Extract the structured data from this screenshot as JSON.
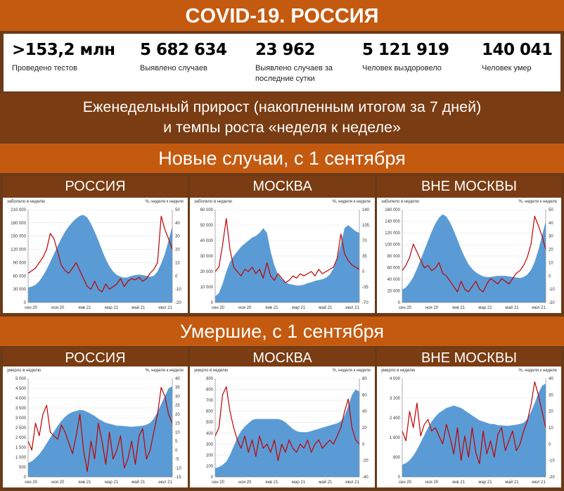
{
  "title": "COVID-19. РОССИЯ",
  "stats": [
    {
      "value": ">153,2 млн",
      "label": "Проведено тестов",
      "color": "#1f3d8a"
    },
    {
      "value": "5 682 634",
      "label": "Выявлено случаев",
      "color": "#e8563c"
    },
    {
      "value": "23 962",
      "label": "Выявлено случаев за последние сутки",
      "color": "#e8563c"
    },
    {
      "value": "5 121 919",
      "label": "Человек выздоровело",
      "color": "#1f3d8a"
    },
    {
      "value": "140 041",
      "label": "Человек умер",
      "color": "#1f3d8a"
    }
  ],
  "subtitle_line1": "Еженедельный прирост (накопленным итогом за 7 дней)",
  "subtitle_line2": "и темпы роста «неделя к неделе»",
  "section_cases": "Новые случаи, с 1 сентября",
  "section_deaths": "Умершие, с 1 сентября",
  "colors": {
    "area": "#5b9bd5",
    "line": "#c00000"
  },
  "chart_data": [
    {
      "type": "area+line",
      "section": "cases",
      "title": "РОССИЯ",
      "ylabel": "заболело в неделю",
      "y2label": "%, неделя к неделе",
      "ylim": [
        0,
        210000
      ],
      "yticks": [
        0,
        30000,
        60000,
        90000,
        120000,
        150000,
        180000,
        210000
      ],
      "ytick_labels": [
        "0",
        "30 000",
        "60 000",
        "90 000",
        "120 000",
        "150 000",
        "180 000",
        "210 000"
      ],
      "y2lim": [
        -20,
        50
      ],
      "y2ticks": [
        -20,
        -10,
        0,
        10,
        20,
        30,
        40,
        50
      ],
      "xticks": [
        "сен 20",
        "ноя 20",
        "янв 21",
        "мар 21",
        "май 21",
        "июл 21"
      ],
      "area": [
        34000,
        36000,
        40000,
        48000,
        60000,
        75000,
        92000,
        110000,
        128000,
        145000,
        160000,
        172000,
        182000,
        190000,
        196000,
        198000,
        192000,
        178000,
        160000,
        140000,
        118000,
        98000,
        82000,
        70000,
        62000,
        58000,
        56000,
        57000,
        60000,
        62000,
        63000,
        62000,
        60000,
        58000,
        60000,
        70000,
        88000,
        110000,
        140000,
        172000
      ],
      "line": [
        2,
        4,
        6,
        10,
        14,
        20,
        32,
        28,
        18,
        8,
        4,
        2,
        6,
        10,
        4,
        -2,
        -8,
        -10,
        -4,
        -10,
        -12,
        -6,
        -10,
        -8,
        -6,
        -2,
        -8,
        -4,
        -2,
        -3,
        -1,
        -4,
        -2,
        2,
        5,
        10,
        45,
        35,
        28,
        20
      ]
    },
    {
      "type": "area+line",
      "section": "cases",
      "title": "МОСКВА",
      "ylabel": "заболело в неделю",
      "y2label": "%, неделя к неделе",
      "ylim": [
        0,
        60000
      ],
      "yticks": [
        0,
        10000,
        20000,
        30000,
        40000,
        50000,
        60000
      ],
      "ytick_labels": [
        "0",
        "10 000",
        "20 000",
        "30 000",
        "40 000",
        "50 000",
        "60 000"
      ],
      "y2lim": [
        -70,
        140
      ],
      "y2ticks": [
        -70,
        -35,
        0,
        35,
        70,
        105,
        140
      ],
      "xticks": [
        "сен 20",
        "ноя 20",
        "янв 21",
        "мар 21",
        "май 21",
        "июл 21"
      ],
      "area": [
        4000,
        6000,
        12000,
        20000,
        26000,
        30000,
        33000,
        36000,
        38000,
        40000,
        42000,
        43000,
        45000,
        48000,
        45000,
        33000,
        24000,
        18000,
        15000,
        13000,
        12000,
        11500,
        11000,
        11000,
        11500,
        12500,
        13000,
        14000,
        14500,
        15000,
        16000,
        18000,
        22000,
        28000,
        38000,
        48000,
        50000,
        48000,
        46000,
        45000
      ],
      "line": [
        0,
        10,
        60,
        120,
        50,
        10,
        0,
        -10,
        5,
        0,
        10,
        -5,
        5,
        -15,
        20,
        -10,
        -20,
        -5,
        -15,
        -25,
        -20,
        -10,
        -15,
        -5,
        -10,
        -5,
        0,
        -10,
        5,
        -5,
        0,
        5,
        10,
        30,
        85,
        40,
        25,
        15,
        10,
        5
      ]
    },
    {
      "type": "area+line",
      "section": "cases",
      "title": "ВНЕ МОСКВЫ",
      "ylabel": "заболело в неделю",
      "y2label": "%, неделя к неделе",
      "ylim": [
        0,
        160000
      ],
      "yticks": [
        0,
        20000,
        40000,
        60000,
        80000,
        100000,
        120000,
        140000,
        160000
      ],
      "ytick_labels": [
        "0",
        "20 000",
        "40 000",
        "60 000",
        "80 000",
        "100 000",
        "120 000",
        "140 000",
        "160 000"
      ],
      "y2lim": [
        -20,
        50
      ],
      "y2ticks": [
        -20,
        -10,
        0,
        10,
        20,
        30,
        40,
        50
      ],
      "xticks": [
        "сен 20",
        "ноя 20",
        "янв 21",
        "мар 21",
        "май 21",
        "июл 21"
      ],
      "area": [
        22000,
        26000,
        34000,
        44000,
        58000,
        74000,
        90000,
        106000,
        122000,
        136000,
        146000,
        152000,
        148000,
        138000,
        124000,
        108000,
        92000,
        78000,
        66000,
        58000,
        52000,
        48000,
        45000,
        44000,
        44000,
        45000,
        46000,
        46000,
        46000,
        45000,
        44000,
        43000,
        42000,
        44000,
        48000,
        56000,
        70000,
        90000,
        115000,
        140000
      ],
      "line": [
        4,
        8,
        14,
        24,
        18,
        12,
        6,
        8,
        4,
        6,
        10,
        2,
        0,
        -4,
        -8,
        -12,
        -4,
        -10,
        -12,
        -8,
        -4,
        -10,
        -12,
        -6,
        -2,
        -4,
        -6,
        -2,
        -4,
        -6,
        -2,
        2,
        4,
        8,
        14,
        24,
        45,
        38,
        30,
        20
      ]
    },
    {
      "type": "area+line",
      "section": "deaths",
      "title": "РОССИЯ",
      "ylabel": "умерло в неделю",
      "y2label": "%, неделя к неделе",
      "ylim": [
        0,
        5000
      ],
      "yticks": [
        0,
        500,
        1000,
        1500,
        2000,
        2500,
        3000,
        3500,
        4000,
        4500,
        5000
      ],
      "ytick_labels": [
        "0",
        "500",
        "1 000",
        "1 500",
        "2 000",
        "2 500",
        "3 000",
        "3 500",
        "4 000",
        "4 500",
        "5 000"
      ],
      "y2lim": [
        -15,
        40
      ],
      "y2ticks": [
        -15,
        -10,
        -5,
        0,
        5,
        10,
        15,
        20,
        25,
        30,
        35,
        40
      ],
      "xticks": [
        "сен 20",
        "ноя 20",
        "янв 21",
        "мар 21",
        "май 21",
        "июл 21"
      ],
      "area": [
        700,
        800,
        950,
        1150,
        1400,
        1700,
        2000,
        2300,
        2600,
        2850,
        3050,
        3200,
        3300,
        3350,
        3400,
        3380,
        3300,
        3200,
        3100,
        2950,
        2850,
        2750,
        2700,
        2650,
        2600,
        2600,
        2580,
        2560,
        2550,
        2560,
        2580,
        2600,
        2650,
        2750,
        2950,
        3300,
        3700,
        4100,
        4500,
        4600
      ],
      "line": [
        5,
        0,
        15,
        8,
        20,
        25,
        10,
        8,
        6,
        14,
        10,
        4,
        -2,
        8,
        20,
        0,
        -12,
        5,
        -5,
        15,
        5,
        -8,
        10,
        -5,
        0,
        8,
        -10,
        -5,
        5,
        -8,
        8,
        12,
        -5,
        0,
        10,
        20,
        35,
        30,
        20,
        15
      ]
    },
    {
      "type": "area+line",
      "section": "deaths",
      "title": "МОСКВА",
      "ylabel": "умерло в неделю",
      "y2label": "%, неделя к неделе",
      "ylim": [
        0,
        900
      ],
      "yticks": [
        0,
        100,
        200,
        300,
        400,
        500,
        600,
        700,
        800,
        900
      ],
      "ytick_labels": [
        "0",
        "100",
        "200",
        "300",
        "400",
        "500",
        "600",
        "700",
        "800",
        "900"
      ],
      "y2lim": [
        -40,
        80
      ],
      "y2ticks": [
        -40,
        -20,
        0,
        20,
        40,
        60,
        80
      ],
      "xticks": [
        "сен 20",
        "ноя 20",
        "янв 21",
        "мар 21",
        "май 21",
        "июл 21"
      ],
      "area": [
        80,
        90,
        110,
        140,
        200,
        280,
        360,
        420,
        460,
        490,
        520,
        530,
        530,
        530,
        530,
        530,
        530,
        530,
        520,
        500,
        470,
        440,
        420,
        410,
        410,
        410,
        420,
        430,
        440,
        450,
        460,
        470,
        480,
        490,
        510,
        560,
        650,
        750,
        800,
        780
      ],
      "line": [
        10,
        20,
        60,
        70,
        40,
        20,
        5,
        -5,
        10,
        -10,
        5,
        -15,
        10,
        -5,
        0,
        -10,
        5,
        -20,
        0,
        -10,
        5,
        -5,
        -10,
        0,
        -5,
        5,
        -10,
        0,
        5,
        -5,
        0,
        5,
        0,
        10,
        20,
        40,
        55,
        20,
        5,
        0
      ]
    },
    {
      "type": "area+line",
      "section": "deaths",
      "title": "ВНЕ МОСКВЫ",
      "ylabel": "умерло в неделю",
      "y2label": "%, неделя к неделе",
      "ylim": [
        0,
        4000
      ],
      "yticks": [
        0,
        800,
        1600,
        2400,
        3200,
        4000
      ],
      "ytick_labels": [
        "0",
        "800",
        "1 600",
        "2 400",
        "3 200",
        "4 000"
      ],
      "y2lim": [
        -20,
        40
      ],
      "y2ticks": [
        -20,
        -10,
        0,
        10,
        20,
        30,
        40
      ],
      "xticks": [
        "сен 20",
        "ноя 20",
        "янв 21",
        "мар 21",
        "май 21",
        "июл 21"
      ],
      "area": [
        500,
        560,
        680,
        860,
        1100,
        1400,
        1700,
        2000,
        2250,
        2450,
        2600,
        2700,
        2800,
        2850,
        2900,
        2850,
        2800,
        2700,
        2600,
        2500,
        2400,
        2300,
        2250,
        2200,
        2150,
        2150,
        2100,
        2100,
        2080,
        2080,
        2100,
        2120,
        2150,
        2200,
        2350,
        2650,
        3000,
        3400,
        3700,
        3800
      ],
      "line": [
        8,
        2,
        20,
        10,
        25,
        5,
        12,
        15,
        8,
        10,
        5,
        0,
        12,
        4,
        -6,
        10,
        -10,
        5,
        -8,
        10,
        -5,
        -12,
        8,
        -6,
        2,
        -8,
        6,
        10,
        -4,
        2,
        8,
        -4,
        0,
        8,
        14,
        24,
        38,
        30,
        20,
        10
      ]
    }
  ]
}
